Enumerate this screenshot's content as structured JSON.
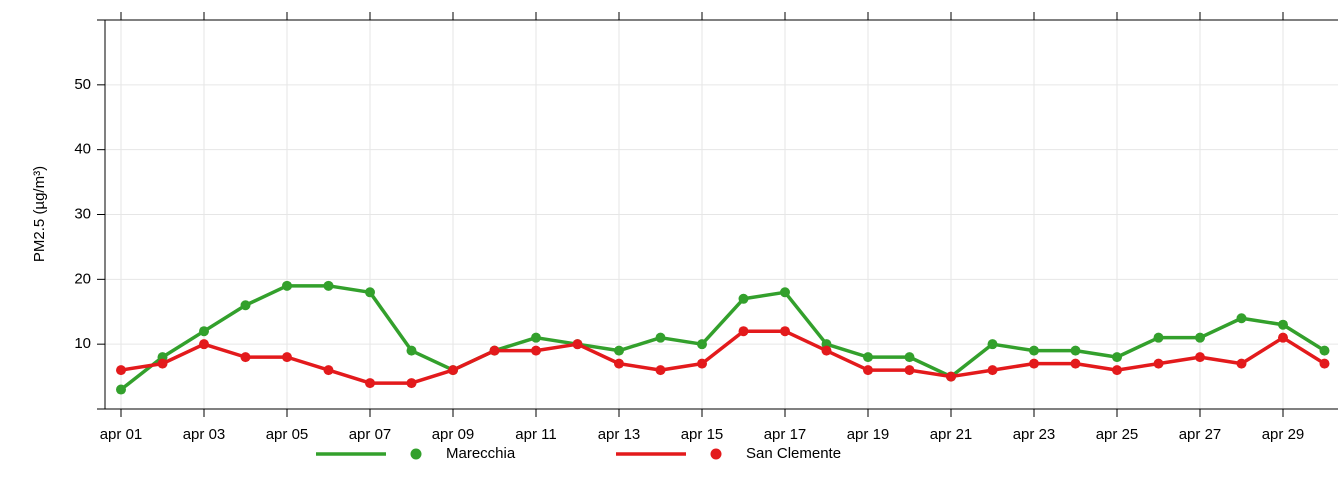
{
  "chart_data": {
    "type": "line",
    "y_label": "PM2.5 (µg/m³)",
    "categories": [
      "apr 01",
      null,
      "apr 03",
      null,
      "apr 05",
      null,
      "apr 07",
      null,
      "apr 09",
      null,
      "apr 11",
      null,
      "apr 13",
      null,
      "apr 15",
      null,
      "apr 17",
      null,
      "apr 19",
      null,
      "apr 21",
      null,
      "apr 23",
      null,
      "apr 25",
      null,
      "apr 27",
      null,
      "apr 29",
      null
    ],
    "series": [
      {
        "name": "Marecchia",
        "color": "#33a02c",
        "values": [
          3,
          8,
          12,
          16,
          19,
          19,
          18,
          9,
          6,
          9,
          11,
          10,
          9,
          11,
          10,
          17,
          18,
          10,
          8,
          8,
          5,
          10,
          9,
          9,
          8,
          11,
          11,
          14,
          13,
          9
        ]
      },
      {
        "name": "San Clemente",
        "color": "#e31a1c",
        "values": [
          6,
          7,
          10,
          8,
          8,
          6,
          4,
          4,
          6,
          9,
          9,
          10,
          7,
          6,
          7,
          12,
          12,
          9,
          6,
          6,
          5,
          6,
          7,
          7,
          6,
          7,
          8,
          7,
          11,
          7
        ]
      }
    ],
    "ylim": [
      0,
      60
    ],
    "yticks": [
      10,
      20,
      30,
      40,
      50
    ],
    "grid": true,
    "legend": "bottom"
  }
}
